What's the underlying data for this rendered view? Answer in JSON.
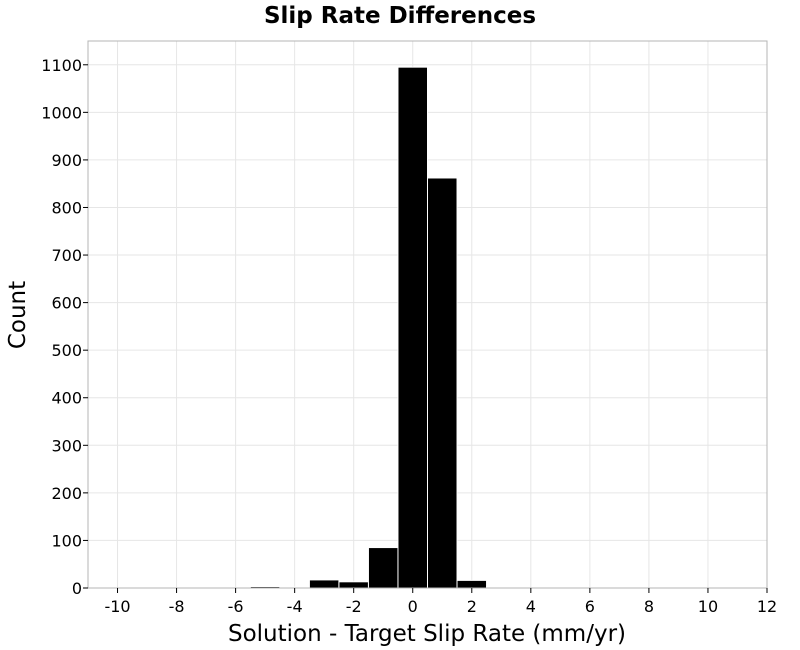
{
  "chart_data": {
    "type": "bar",
    "title": "Slip Rate Differences",
    "xlabel": "Solution - Target Slip Rate (mm/yr)",
    "ylabel": "Count",
    "xlim": [
      -11,
      12
    ],
    "ylim": [
      0,
      1150
    ],
    "xticks": [
      -10,
      -8,
      -6,
      -4,
      -2,
      0,
      2,
      4,
      6,
      8,
      10,
      12
    ],
    "yticks": [
      0,
      100,
      200,
      300,
      400,
      500,
      600,
      700,
      800,
      900,
      1000,
      1100
    ],
    "bin_width": 1,
    "bins": [
      {
        "center": -6,
        "value": 0
      },
      {
        "center": -5,
        "value": 3
      },
      {
        "center": -4,
        "value": 2
      },
      {
        "center": -3,
        "value": 17
      },
      {
        "center": -2,
        "value": 13
      },
      {
        "center": -1,
        "value": 85
      },
      {
        "center": 0,
        "value": 1095
      },
      {
        "center": 1,
        "value": 862
      },
      {
        "center": 2,
        "value": 16
      },
      {
        "center": 3,
        "value": 2
      }
    ],
    "grid": true,
    "bar_color": "#000000"
  }
}
